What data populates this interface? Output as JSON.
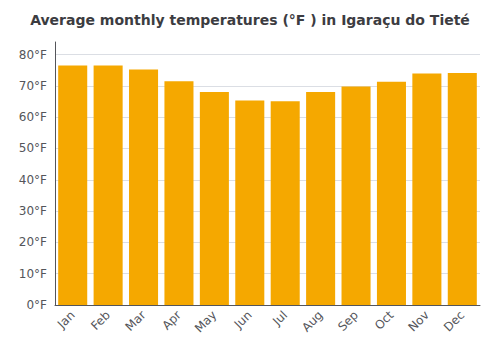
{
  "chart_data": {
    "type": "bar",
    "title": "Average monthly temperatures (°F ) in Igaraçu do Tieté",
    "categories": [
      "Jan",
      "Feb",
      "Mar",
      "Apr",
      "May",
      "Jun",
      "Jul",
      "Aug",
      "Sep",
      "Oct",
      "Nov",
      "Dec"
    ],
    "values": [
      76.5,
      76.5,
      75.2,
      71.5,
      68.0,
      65.3,
      65.1,
      68.0,
      69.8,
      71.3,
      73.9,
      74.1
    ],
    "color": "#F5A800",
    "ylim": [
      0,
      84
    ],
    "yticks": [
      {
        "value": 0,
        "label": "0°F"
      },
      {
        "value": 10,
        "label": "10°F"
      },
      {
        "value": 20,
        "label": "20°F"
      },
      {
        "value": 30,
        "label": "30°F"
      },
      {
        "value": 40,
        "label": "40°F"
      },
      {
        "value": 50,
        "label": "50°F"
      },
      {
        "value": 60,
        "label": "60°F"
      },
      {
        "value": 70,
        "label": "70°F"
      },
      {
        "value": 80,
        "label": "80°F"
      }
    ],
    "grid": true
  }
}
